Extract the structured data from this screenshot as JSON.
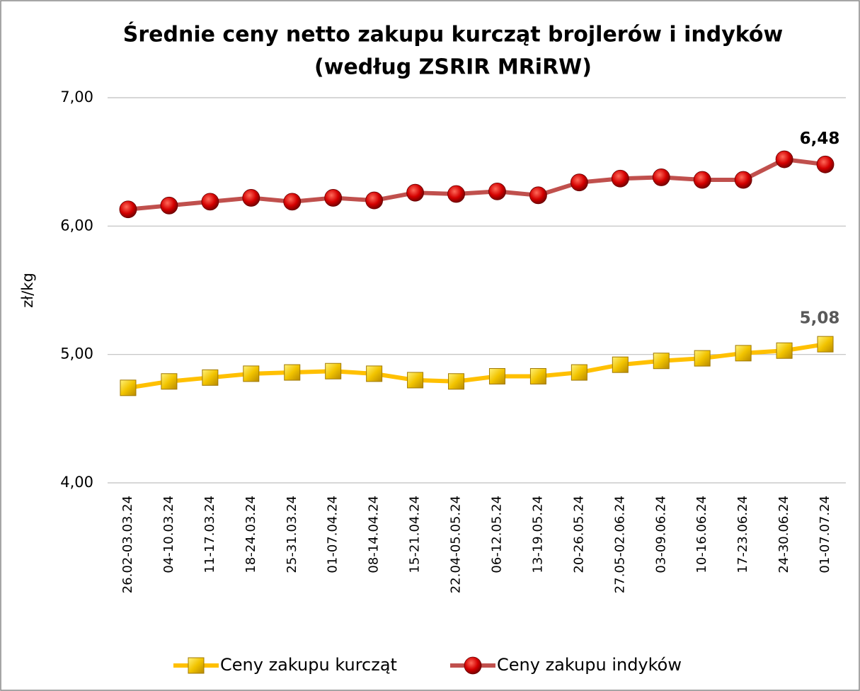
{
  "chart_data": {
    "type": "line",
    "title": "Średnie ceny netto zakupu kurcząt brojlerów i indyków",
    "subtitle": "(według ZSRIR MRiRW)",
    "y_label": "zł/kg",
    "categories": [
      "26.02-03.03.24",
      "04-10.03.24",
      "11-17.03.24",
      "18-24.03.24",
      "25-31.03.24",
      "01-07.04.24",
      "08-14.04.24",
      "15-21.04.24",
      "22.04-05.05.24",
      "06-12.05.24",
      "13-19.05.24",
      "20-26.05.24",
      "27.05-02.06.24",
      "03-09.06.24",
      "10-16.06.24",
      "17-23.06.24",
      "24-30.06.24",
      "01-07.07.24"
    ],
    "series": [
      {
        "name": "Ceny zakupu kurcząt",
        "color": "#FFC000",
        "marker": "square",
        "values": [
          4.74,
          4.79,
          4.82,
          4.85,
          4.86,
          4.87,
          4.85,
          4.8,
          4.79,
          4.83,
          4.83,
          4.86,
          4.92,
          4.95,
          4.97,
          5.01,
          5.03,
          5.08
        ],
        "value_labels": [
          null,
          null,
          null,
          null,
          null,
          null,
          null,
          null,
          null,
          null,
          null,
          null,
          null,
          null,
          null,
          null,
          null,
          "5,08"
        ]
      },
      {
        "name": "Ceny zakupu indyków",
        "color": "#C0504D",
        "marker": "circle",
        "values": [
          6.13,
          6.16,
          6.19,
          6.22,
          6.19,
          6.22,
          6.2,
          6.26,
          6.25,
          6.27,
          6.24,
          6.34,
          6.37,
          6.38,
          6.36,
          6.36,
          6.52,
          6.48
        ],
        "value_labels": [
          null,
          null,
          null,
          null,
          null,
          null,
          null,
          null,
          null,
          null,
          null,
          null,
          null,
          null,
          null,
          null,
          null,
          "6,48"
        ]
      }
    ],
    "ylim": [
      4,
      7
    ],
    "yticks": [
      {
        "value": 4,
        "label": "4,00"
      },
      {
        "value": 5,
        "label": "5,00"
      },
      {
        "value": 6,
        "label": "6,00"
      },
      {
        "value": 7,
        "label": "7,00"
      }
    ],
    "grid": true,
    "legend": "bottom"
  }
}
